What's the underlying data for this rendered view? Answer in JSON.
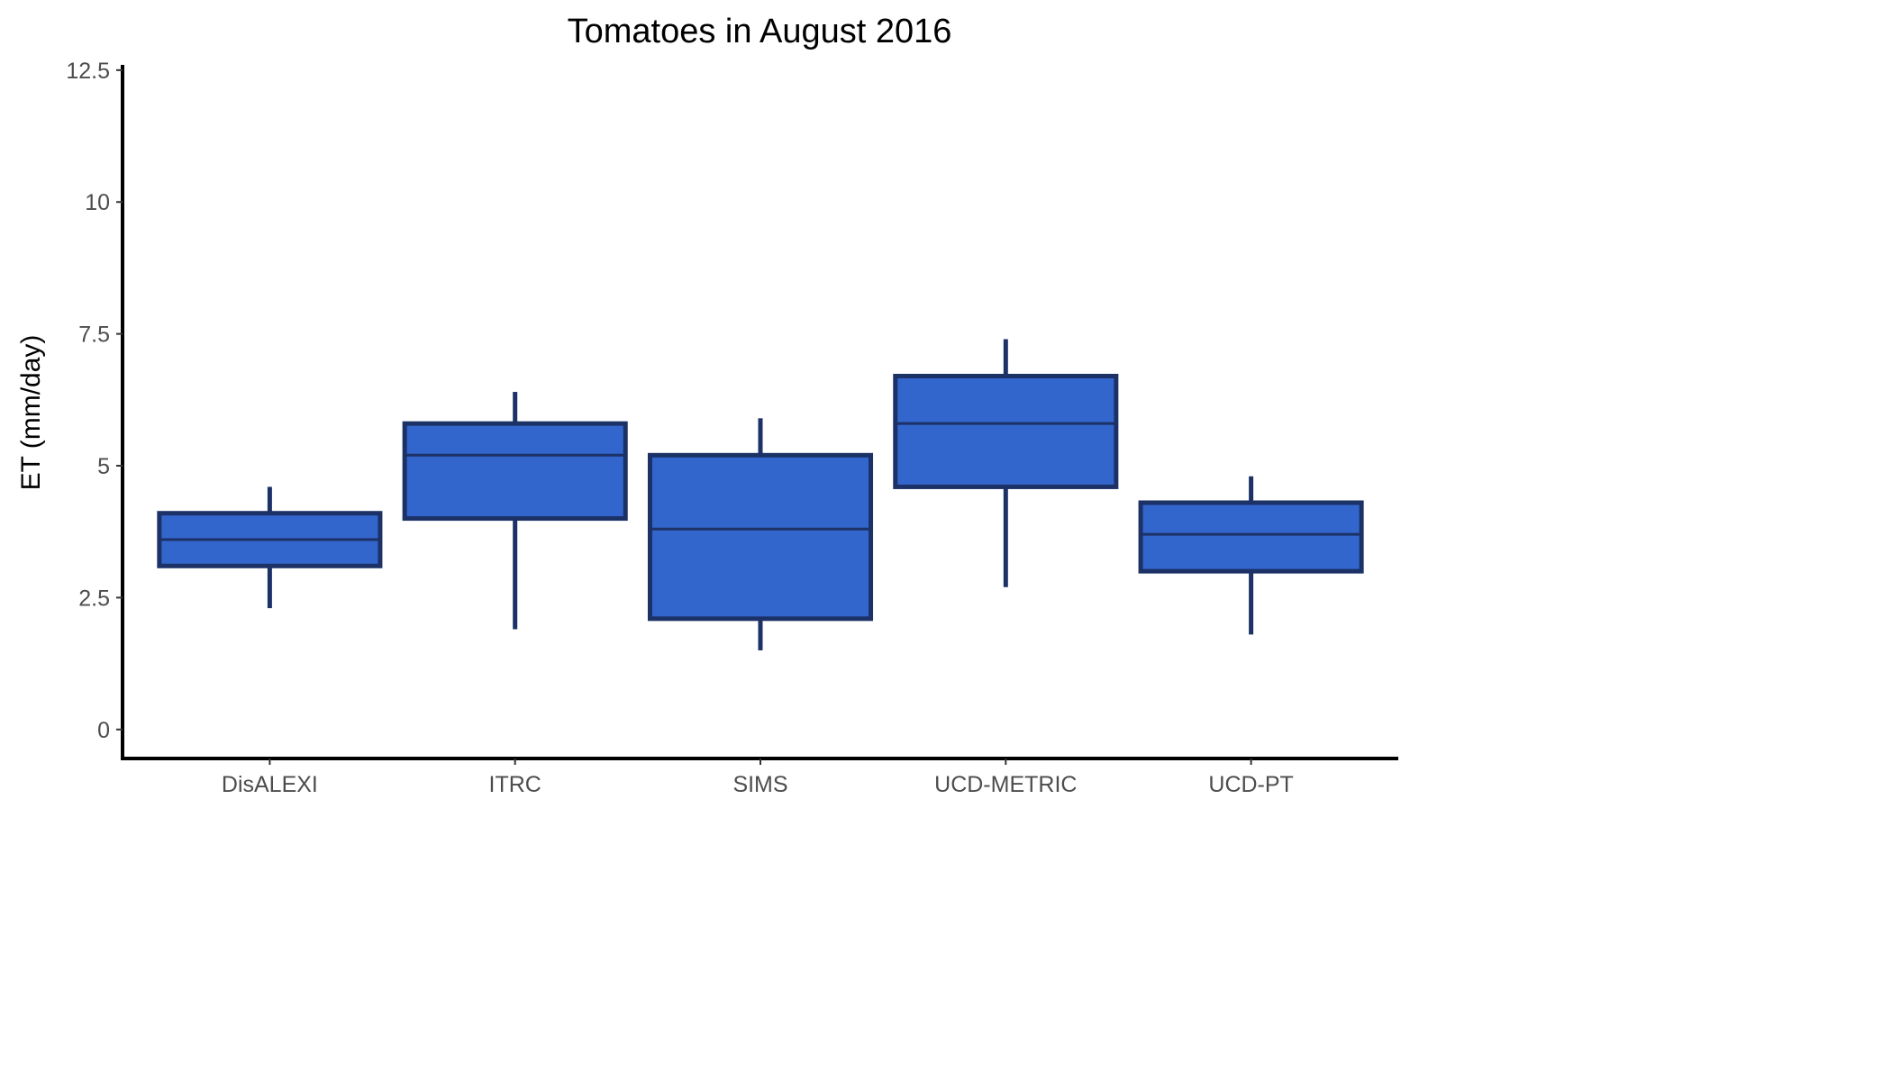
{
  "chart_data": {
    "type": "boxplot",
    "title": "Tomatoes in August 2016",
    "xlabel": "",
    "ylabel": "ET (mm/day)",
    "ylim": [
      -0.55,
      12.6
    ],
    "yticks": [
      {
        "value": 0,
        "label": "0"
      },
      {
        "value": 2.5,
        "label": "2.5"
      },
      {
        "value": 5,
        "label": "5"
      },
      {
        "value": 7.5,
        "label": "7.5"
      },
      {
        "value": 10,
        "label": "10"
      },
      {
        "value": 12.5,
        "label": "12.5"
      }
    ],
    "grid": false,
    "legend": "none",
    "colors": {
      "box_fill": "#3366cc",
      "box_outline": "#1c3166",
      "axis": "#000000"
    },
    "categories": [
      "DisALEXI",
      "ITRC",
      "SIMS",
      "UCD-METRIC",
      "UCD-PT"
    ],
    "boxes": [
      {
        "category": "DisALEXI",
        "whisker_low": 2.3,
        "q1": 3.1,
        "median": 3.6,
        "q3": 4.1,
        "whisker_high": 4.6
      },
      {
        "category": "ITRC",
        "whisker_low": 1.9,
        "q1": 4.0,
        "median": 5.2,
        "q3": 5.8,
        "whisker_high": 6.4
      },
      {
        "category": "SIMS",
        "whisker_low": 1.5,
        "q1": 2.1,
        "median": 3.8,
        "q3": 5.2,
        "whisker_high": 5.9
      },
      {
        "category": "UCD-METRIC",
        "whisker_low": 2.7,
        "q1": 4.6,
        "median": 5.8,
        "q3": 6.7,
        "whisker_high": 7.4
      },
      {
        "category": "UCD-PT",
        "whisker_low": 1.8,
        "q1": 3.0,
        "median": 3.7,
        "q3": 4.3,
        "whisker_high": 4.8
      }
    ]
  }
}
